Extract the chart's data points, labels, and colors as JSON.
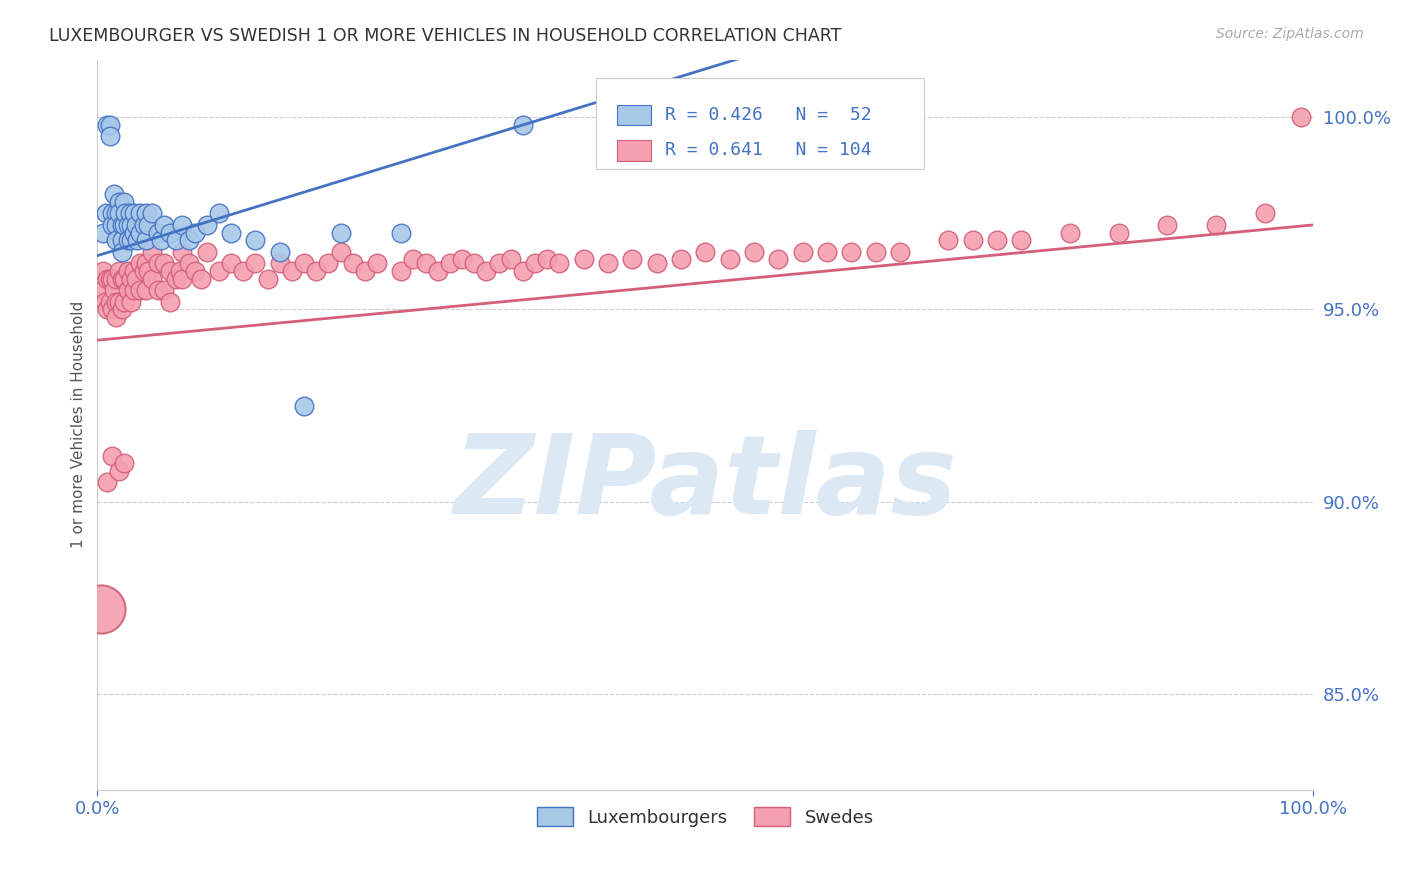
{
  "title": "LUXEMBOURGER VS SWEDISH 1 OR MORE VEHICLES IN HOUSEHOLD CORRELATION CHART",
  "source": "Source: ZipAtlas.com",
  "ylabel": "1 or more Vehicles in Household",
  "legend_lux": "Luxembourgers",
  "legend_swe": "Swedes",
  "R_lux": 0.426,
  "N_lux": 52,
  "R_swe": 0.641,
  "N_swe": 104,
  "color_lux": "#a8c8e8",
  "color_swe": "#f4a0b0",
  "color_line_lux": "#4472c4",
  "color_line_swe": "#d45f7a",
  "color_text_blue": "#4472c4",
  "watermark_color": "#dce9f5",
  "xlim": [
    0.0,
    1.0
  ],
  "ylim": [
    0.825,
    1.015
  ],
  "lux_x": [
    0.005,
    0.007,
    0.008,
    0.01,
    0.01,
    0.012,
    0.012,
    0.014,
    0.015,
    0.015,
    0.015,
    0.018,
    0.018,
    0.02,
    0.02,
    0.02,
    0.022,
    0.022,
    0.023,
    0.025,
    0.025,
    0.027,
    0.028,
    0.028,
    0.03,
    0.03,
    0.032,
    0.033,
    0.035,
    0.035,
    0.038,
    0.04,
    0.04,
    0.042,
    0.045,
    0.05,
    0.052,
    0.055,
    0.06,
    0.065,
    0.07,
    0.075,
    0.08,
    0.09,
    0.1,
    0.11,
    0.13,
    0.15,
    0.17,
    0.2,
    0.25,
    0.35
  ],
  "lux_y": [
    0.97,
    0.975,
    0.998,
    0.998,
    0.995,
    0.975,
    0.972,
    0.98,
    0.975,
    0.972,
    0.968,
    0.978,
    0.975,
    0.972,
    0.968,
    0.965,
    0.978,
    0.972,
    0.975,
    0.972,
    0.968,
    0.975,
    0.972,
    0.968,
    0.975,
    0.97,
    0.972,
    0.968,
    0.975,
    0.97,
    0.972,
    0.975,
    0.968,
    0.972,
    0.975,
    0.97,
    0.968,
    0.972,
    0.97,
    0.968,
    0.972,
    0.968,
    0.97,
    0.972,
    0.975,
    0.97,
    0.968,
    0.965,
    0.925,
    0.97,
    0.97,
    0.998
  ],
  "swe_x": [
    0.005,
    0.005,
    0.006,
    0.008,
    0.008,
    0.01,
    0.01,
    0.012,
    0.012,
    0.014,
    0.015,
    0.015,
    0.015,
    0.018,
    0.018,
    0.02,
    0.02,
    0.022,
    0.022,
    0.025,
    0.025,
    0.028,
    0.028,
    0.03,
    0.03,
    0.032,
    0.035,
    0.035,
    0.038,
    0.04,
    0.04,
    0.042,
    0.045,
    0.045,
    0.05,
    0.05,
    0.055,
    0.055,
    0.06,
    0.06,
    0.065,
    0.068,
    0.07,
    0.07,
    0.075,
    0.08,
    0.085,
    0.09,
    0.1,
    0.11,
    0.12,
    0.13,
    0.14,
    0.15,
    0.16,
    0.17,
    0.18,
    0.19,
    0.2,
    0.21,
    0.22,
    0.23,
    0.25,
    0.26,
    0.27,
    0.28,
    0.29,
    0.3,
    0.31,
    0.32,
    0.33,
    0.34,
    0.35,
    0.36,
    0.37,
    0.38,
    0.4,
    0.42,
    0.44,
    0.46,
    0.48,
    0.5,
    0.52,
    0.54,
    0.56,
    0.58,
    0.6,
    0.62,
    0.64,
    0.66,
    0.7,
    0.72,
    0.74,
    0.76,
    0.8,
    0.84,
    0.88,
    0.92,
    0.96,
    0.99,
    0.008,
    0.012,
    0.018,
    0.022
  ],
  "swe_y": [
    0.96,
    0.955,
    0.952,
    0.958,
    0.95,
    0.958,
    0.952,
    0.958,
    0.95,
    0.955,
    0.958,
    0.952,
    0.948,
    0.96,
    0.952,
    0.958,
    0.95,
    0.958,
    0.952,
    0.96,
    0.955,
    0.958,
    0.952,
    0.96,
    0.955,
    0.958,
    0.962,
    0.955,
    0.96,
    0.962,
    0.955,
    0.96,
    0.965,
    0.958,
    0.962,
    0.955,
    0.962,
    0.955,
    0.96,
    0.952,
    0.958,
    0.96,
    0.965,
    0.958,
    0.962,
    0.96,
    0.958,
    0.965,
    0.96,
    0.962,
    0.96,
    0.962,
    0.958,
    0.962,
    0.96,
    0.962,
    0.96,
    0.962,
    0.965,
    0.962,
    0.96,
    0.962,
    0.96,
    0.963,
    0.962,
    0.96,
    0.962,
    0.963,
    0.962,
    0.96,
    0.962,
    0.963,
    0.96,
    0.962,
    0.963,
    0.962,
    0.963,
    0.962,
    0.963,
    0.962,
    0.963,
    0.965,
    0.963,
    0.965,
    0.963,
    0.965,
    0.965,
    0.965,
    0.965,
    0.965,
    0.968,
    0.968,
    0.968,
    0.968,
    0.97,
    0.97,
    0.972,
    0.972,
    0.975,
    1.0,
    0.905,
    0.912,
    0.908,
    0.91
  ],
  "swe_large_x": [
    0.003
  ],
  "swe_large_y": [
    0.872
  ],
  "background_color": "#ffffff",
  "grid_color": "#cccccc"
}
